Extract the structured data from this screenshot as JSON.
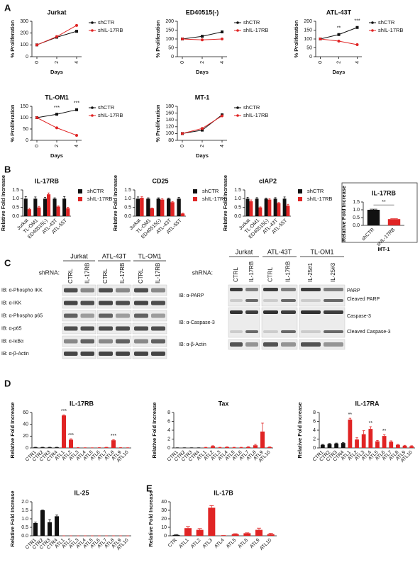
{
  "panel_labels": [
    "A",
    "B",
    "C",
    "D",
    "E"
  ],
  "chart_data": [
    {
      "type": "line",
      "title": "Jurkat",
      "x": [
        0,
        2,
        4
      ],
      "xlim": [
        -0.5,
        4.5
      ],
      "xticks": [
        0,
        2,
        4
      ],
      "xlabel": "Days",
      "ylabel": "% Proliferation",
      "ylim": [
        0,
        300
      ],
      "yticks": [
        0,
        100,
        200,
        300
      ],
      "legend": "right",
      "series": [
        {
          "name": "shCTR",
          "color": "#111111",
          "values": [
            100,
            165,
            215
          ]
        },
        {
          "name": "shIL-17RB",
          "color": "#e02424",
          "values": [
            100,
            170,
            265
          ]
        }
      ]
    },
    {
      "type": "line",
      "title": "ED40515(-)",
      "x": [
        0,
        2,
        4
      ],
      "xlim": [
        -0.5,
        4.5
      ],
      "xticks": [
        0,
        2,
        4
      ],
      "xlabel": "Days",
      "ylabel": "% Proliferation",
      "ylim": [
        0,
        200
      ],
      "yticks": [
        0,
        50,
        100,
        150,
        200
      ],
      "legend": "right",
      "series": [
        {
          "name": "shCTR",
          "color": "#111111",
          "values": [
            100,
            115,
            140
          ]
        },
        {
          "name": "shIL-17RB",
          "color": "#e02424",
          "values": [
            100,
            95,
            100
          ]
        }
      ]
    },
    {
      "type": "line",
      "title": "ATL-43T",
      "x": [
        0,
        2,
        4
      ],
      "xlim": [
        -0.5,
        4.5
      ],
      "xticks": [
        0,
        2,
        4
      ],
      "xlabel": "Days",
      "ylabel": "% Proliferation",
      "ylim": [
        0,
        200
      ],
      "yticks": [
        0,
        50,
        100,
        150,
        200
      ],
      "legend": "right",
      "annotations": [
        null,
        "**",
        "***"
      ],
      "series": [
        {
          "name": "shCTR",
          "color": "#111111",
          "values": [
            100,
            125,
            165
          ]
        },
        {
          "name": "shIL-17RB",
          "color": "#e02424",
          "values": [
            100,
            88,
            68
          ]
        }
      ]
    },
    {
      "type": "line",
      "title": "TL-OM1",
      "x": [
        0,
        2,
        4
      ],
      "xlim": [
        -0.5,
        4.5
      ],
      "xticks": [
        0,
        2,
        4
      ],
      "xlabel": "Days",
      "ylabel": "% Proliferation",
      "ylim": [
        0,
        150
      ],
      "yticks": [
        0,
        50,
        100,
        150
      ],
      "legend": "right",
      "annotations": [
        null,
        "***",
        "***"
      ],
      "series": [
        {
          "name": "shCTR",
          "color": "#111111",
          "values": [
            100,
            115,
            135
          ]
        },
        {
          "name": "shIL-17RB",
          "color": "#e02424",
          "values": [
            100,
            55,
            22
          ]
        }
      ]
    },
    {
      "type": "line",
      "title": "MT-1",
      "x": [
        0,
        2,
        4
      ],
      "xlim": [
        -0.5,
        4.5
      ],
      "xticks": [
        0,
        2,
        4
      ],
      "xlabel": "Days",
      "ylabel": "% Proliferation",
      "ylim": [
        80,
        180
      ],
      "yticks": [
        80,
        100,
        120,
        140,
        160,
        180
      ],
      "legend": "right",
      "series": [
        {
          "name": "shCTR",
          "color": "#111111",
          "values": [
            100,
            110,
            155
          ]
        },
        {
          "name": "shIL-17RB",
          "color": "#e02424",
          "values": [
            100,
            115,
            152
          ]
        }
      ]
    },
    {
      "type": "bar",
      "title": "IL-17RB",
      "categories": [
        "Jurkat",
        "TL-OM1",
        "ED40515(-)",
        "ATL-43T",
        "ATL-55T"
      ],
      "ylabel": "Relative Fold Increase",
      "ylim": [
        0,
        1.5
      ],
      "yticks": [
        {
          "value": 0,
          "label": "0.0"
        },
        {
          "value": 0.5,
          "label": "0.5"
        },
        {
          "value": 1,
          "label": "1.0"
        },
        {
          "value": 1.5,
          "label": "1.5"
        }
      ],
      "legend": "right",
      "series": [
        {
          "name": "shCTR",
          "color": "#111111",
          "values": [
            1,
            1,
            1,
            1,
            1
          ],
          "errors": [
            0.12,
            0.1,
            0.08,
            0.05,
            0.12
          ]
        },
        {
          "name": "shIL-17RB",
          "color": "#e02424",
          "values": [
            0.4,
            0.5,
            1.25,
            0.55,
            0.45
          ],
          "errors": [
            0.05,
            0.06,
            0.08,
            0.04,
            0.06
          ]
        }
      ]
    },
    {
      "type": "bar",
      "title": "CD25",
      "categories": [
        "Jurkat",
        "TL-OM1",
        "ED40515(-)",
        "ATL-43T",
        "ATL-55T"
      ],
      "ylabel": "Relative Fold Increase",
      "ylim": [
        0,
        1.5
      ],
      "yticks": [
        {
          "value": 0,
          "label": "0.0"
        },
        {
          "value": 0.5,
          "label": "0.5"
        },
        {
          "value": 1,
          "label": "1.0"
        },
        {
          "value": 1.5,
          "label": "1.5"
        }
      ],
      "legend": "right",
      "series": [
        {
          "name": "shCTR",
          "color": "#111111",
          "values": [
            1,
            1,
            1,
            1,
            1
          ],
          "errors": [
            0.1,
            0.05,
            0.05,
            0.04,
            0.08
          ]
        },
        {
          "name": "shIL-17RB",
          "color": "#e02424",
          "values": [
            1.05,
            0.45,
            0.95,
            0.8,
            0.15
          ],
          "errors": [
            0.06,
            0.02,
            0.05,
            0.04,
            0.02
          ]
        }
      ]
    },
    {
      "type": "bar",
      "title": "cIAP2",
      "categories": [
        "Jurkat",
        "TL-OM1",
        "ED40515(-)",
        "ATL-43T",
        "ATL-55T"
      ],
      "ylabel": "Relative Fold Increase",
      "ylim": [
        0,
        1.5
      ],
      "yticks": [
        {
          "value": 0,
          "label": "0.0"
        },
        {
          "value": 0.5,
          "label": "0.5"
        },
        {
          "value": 1,
          "label": "1.0"
        },
        {
          "value": 1.5,
          "label": "1.5"
        }
      ],
      "legend": "right",
      "series": [
        {
          "name": "shCTR",
          "color": "#111111",
          "values": [
            1,
            1,
            1,
            1,
            1
          ],
          "errors": [
            0.08,
            0.06,
            0.04,
            0.06,
            0.1
          ]
        },
        {
          "name": "shIL-17RB",
          "color": "#e02424",
          "values": [
            0.85,
            0.5,
            0.95,
            0.75,
            0.6
          ],
          "errors": [
            0.08,
            0.03,
            0.05,
            0.03,
            0.08
          ]
        }
      ]
    },
    {
      "type": "bar",
      "title": "IL-17RB",
      "categories": [
        "shCTR",
        "shIL-17RB"
      ],
      "values": [
        1,
        0.4
      ],
      "errors": [
        0.04,
        0.03
      ],
      "colors": [
        "#111111",
        "#e02424"
      ],
      "xlabel": "MT-1",
      "annotation": "**",
      "ylabel": "Relative Fold Increase",
      "ylim": [
        0,
        1.5
      ],
      "yticks": [
        {
          "value": 0,
          "label": "0.0"
        },
        {
          "value": 0.5,
          "label": "0.5"
        },
        {
          "value": 1,
          "label": "1.0"
        },
        {
          "value": 1.5,
          "label": "1.5"
        }
      ]
    },
    {
      "type": "bar",
      "title": "IL-17RB",
      "categories": [
        "CTR1",
        "CTR2",
        "CTR3",
        "CTR4",
        "ATL1",
        "ATL2",
        "ATL3",
        "ATL4",
        "ATL5",
        "ATL6",
        "ATL7",
        "ATL8",
        "ATL9",
        "ATL10"
      ],
      "values": [
        1,
        1,
        1,
        1,
        55,
        14,
        0.5,
        0.3,
        0.2,
        0.5,
        1,
        13,
        0.5,
        0.3
      ],
      "errors": [
        0.2,
        0.2,
        0.2,
        0.2,
        1,
        1.5,
        0.1,
        0.1,
        0.1,
        0.1,
        0.2,
        1,
        0.1,
        0.1
      ],
      "colors": [
        "#111111",
        "#111111",
        "#111111",
        "#111111",
        "#e02424",
        "#e02424",
        "#e02424",
        "#e02424",
        "#e02424",
        "#e02424",
        "#e02424",
        "#e02424",
        "#e02424",
        "#e02424"
      ],
      "annotations": [
        null,
        null,
        null,
        null,
        "***",
        "***",
        null,
        null,
        null,
        null,
        null,
        "***",
        null,
        null
      ],
      "ylabel": "Relative Fold Increase",
      "ylim": [
        0,
        60
      ],
      "yticks": [
        0,
        20,
        40,
        60
      ]
    },
    {
      "type": "bar",
      "title": "Tax",
      "categories": [
        "CTR1",
        "CTR2",
        "CTR3",
        "CTR4",
        "ATL1",
        "ATL2",
        "ATL3",
        "ATL4",
        "ATL5",
        "ATL6",
        "ATL7",
        "ATL8",
        "ATL9",
        "ATL10"
      ],
      "values": [
        0.05,
        0.05,
        0.05,
        0.05,
        0.1,
        0.4,
        0.1,
        0.2,
        0.1,
        0.1,
        0.2,
        0.6,
        3.7,
        0.2
      ],
      "errors": [
        0,
        0,
        0,
        0,
        0.05,
        0.1,
        0.05,
        0.05,
        0.05,
        0.05,
        0.1,
        0.2,
        1.9,
        0.05
      ],
      "colors": [
        "#111111",
        "#111111",
        "#111111",
        "#111111",
        "#e02424",
        "#e02424",
        "#e02424",
        "#e02424",
        "#e02424",
        "#e02424",
        "#e02424",
        "#e02424",
        "#e02424",
        "#e02424"
      ],
      "ylabel": "Relative Fold Increase",
      "ylim": [
        0,
        8
      ],
      "yticks": [
        0,
        2,
        4,
        6,
        8
      ]
    },
    {
      "type": "bar",
      "title": "IL-17RA",
      "categories": [
        "CTR1",
        "CTR2",
        "CTR3",
        "CTR4",
        "ATL1",
        "ATL2",
        "ATL3",
        "ATL4",
        "ATL5",
        "ATL6",
        "ATL7",
        "ATL8",
        "ATL9",
        "ATL10"
      ],
      "values": [
        0.7,
        0.9,
        1,
        1.1,
        6.4,
        1.9,
        3.1,
        4.3,
        1.5,
        2.7,
        1.4,
        0.7,
        0.5,
        0.4
      ],
      "errors": [
        0.1,
        0.1,
        0.1,
        0.1,
        0.3,
        0.4,
        0.8,
        0.5,
        0.2,
        0.3,
        0.2,
        0.1,
        0.1,
        0.1
      ],
      "colors": [
        "#111111",
        "#111111",
        "#111111",
        "#111111",
        "#e02424",
        "#e02424",
        "#e02424",
        "#e02424",
        "#e02424",
        "#e02424",
        "#e02424",
        "#e02424",
        "#e02424",
        "#e02424"
      ],
      "annotations": [
        null,
        null,
        null,
        null,
        "**",
        null,
        null,
        "**",
        null,
        "**",
        null,
        null,
        null,
        null
      ],
      "ylabel": "Relative Fold Increase",
      "ylim": [
        0,
        8
      ],
      "yticks": [
        0,
        2,
        4,
        6,
        8
      ]
    },
    {
      "type": "bar",
      "title": "IL-25",
      "categories": [
        "CTR1",
        "CTR2",
        "CTR3",
        "CTR4",
        "ATL1",
        "ATL2",
        "ATL3",
        "ATL4",
        "ATL5",
        "ATL6",
        "ATL7",
        "ATL8",
        "ATL9",
        "ATL10"
      ],
      "values": [
        0.75,
        1.5,
        0.8,
        1.15,
        0,
        0,
        0,
        0,
        0,
        0,
        0,
        0,
        0,
        0
      ],
      "errors": [
        0.05,
        0.02,
        0.15,
        0.07,
        0,
        0,
        0,
        0,
        0,
        0,
        0,
        0,
        0,
        0
      ],
      "colors": [
        "#111111",
        "#111111",
        "#111111",
        "#111111",
        "#e02424",
        "#e02424",
        "#e02424",
        "#e02424",
        "#e02424",
        "#e02424",
        "#e02424",
        "#e02424",
        "#e02424",
        "#e02424"
      ],
      "ylabel": "Relative Fold Increase",
      "ylim": [
        0,
        2
      ],
      "yticks": [
        {
          "value": 0,
          "label": "0.0"
        },
        {
          "value": 0.5,
          "label": "0.5"
        },
        {
          "value": 1,
          "label": "1.0"
        },
        {
          "value": 1.5,
          "label": "1.5"
        },
        {
          "value": 2,
          "label": "2.0"
        }
      ]
    },
    {
      "type": "bar",
      "title": "IL-17B",
      "categories": [
        "CTR",
        "ATL1",
        "ATL2",
        "ATL3",
        "ATL4",
        "ATL5",
        "ATL6",
        "ATL9",
        "ATL10"
      ],
      "values": [
        1,
        9,
        7,
        33,
        0.3,
        2,
        3,
        7,
        2
      ],
      "errors": [
        0.5,
        2,
        1.5,
        2.5,
        0.1,
        0.5,
        0.5,
        2,
        0.8
      ],
      "colors": [
        "#111111",
        "#e02424",
        "#e02424",
        "#e02424",
        "#e02424",
        "#e02424",
        "#e02424",
        "#e02424",
        "#e02424"
      ],
      "ylabel": "Relative Fold Increase",
      "ylim": [
        0,
        40
      ],
      "yticks": [
        0,
        10,
        20,
        30,
        40
      ]
    }
  ],
  "blots": [
    {
      "shrna_label": "shRNA:",
      "headers": [
        "Jurkat",
        "ATL-43T",
        "TL-OM1"
      ],
      "lanes": [
        "CTRL",
        "IL-17RB",
        "CTRL",
        "IL-17RB",
        "CTRL",
        "IL-17RB"
      ],
      "rows": [
        "IB: α-Phospho IKK",
        "IB: α-IKK",
        "IB: α-Phospho p65",
        "IB: α-p65",
        "IB: α-IκBα",
        "IB: α-β-Actin"
      ]
    },
    {
      "shrna_label": "shRNA:",
      "headers": [
        "Jurkat",
        "ATL-43T",
        "TL-OM1"
      ],
      "lanes": [
        "CTRL",
        "IL-17RB",
        "CTRL",
        "IL-17RB",
        "IL-25#1",
        "IL-25#3"
      ],
      "rows": [
        "IB: α-PARP",
        "IB: α-Caspase-3",
        "IB: α-β-Actin"
      ],
      "band_labels": [
        "PARP",
        "Cleaved PARP",
        "Caspase-3",
        "Cleaved Caspase-3"
      ]
    }
  ]
}
